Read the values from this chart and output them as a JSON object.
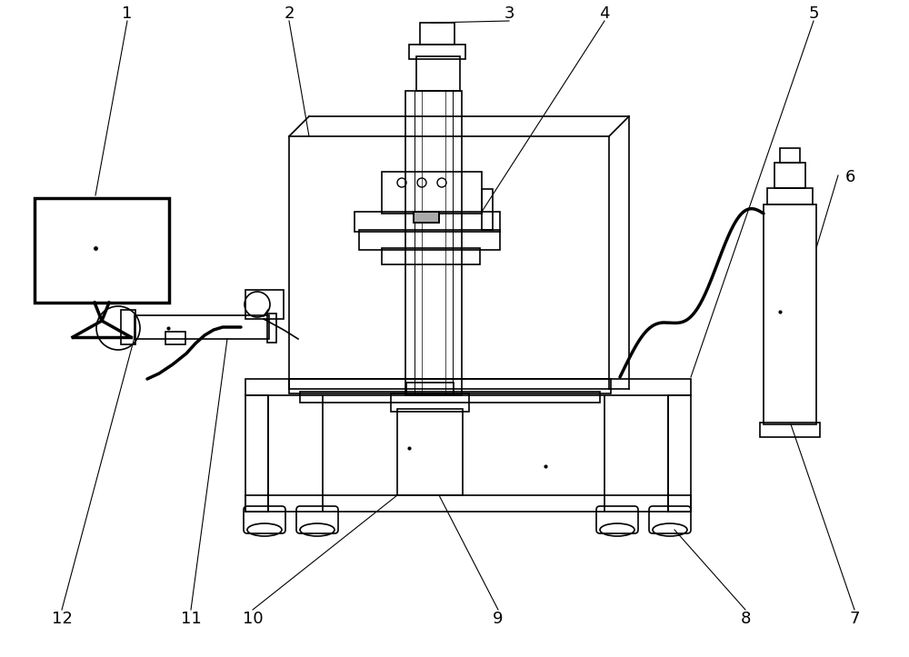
{
  "bg_color": "#ffffff",
  "lc": "#000000",
  "lw": 1.2,
  "lw_thick": 2.5,
  "lw_ann": 0.8,
  "label_fs": 13,
  "ann_color": "#000000"
}
